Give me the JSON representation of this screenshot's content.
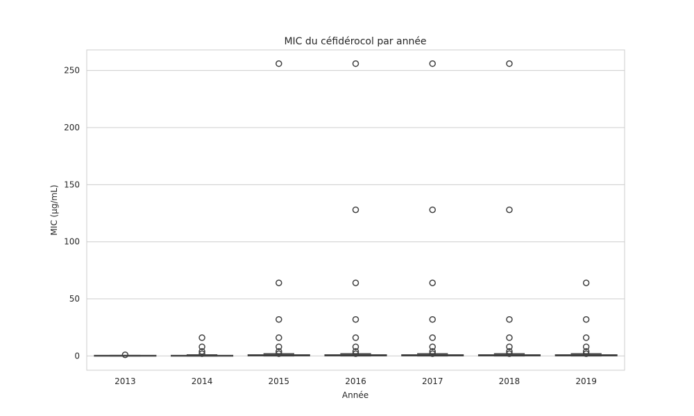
{
  "chart_data": {
    "type": "box",
    "title": "MIC du céfidérocol par année",
    "xlabel": "Année",
    "ylabel": "MIC (µg/mL)",
    "ylim": [
      -12.5,
      268
    ],
    "yticks": [
      0,
      50,
      100,
      150,
      200,
      250
    ],
    "ytick_labels": [
      "0",
      "50",
      "100",
      "150",
      "200",
      "250"
    ],
    "grid": true,
    "categories": [
      "2013",
      "2014",
      "2015",
      "2016",
      "2017",
      "2018",
      "2019"
    ],
    "boxes": [
      {
        "category": "2013",
        "q1": 0.25,
        "median": 0.25,
        "q3": 0.5,
        "whisker_low": 0.06,
        "whisker_high": 0.5,
        "outliers": [
          1
        ]
      },
      {
        "category": "2014",
        "q1": 0.12,
        "median": 0.25,
        "q3": 0.5,
        "whisker_low": 0.03,
        "whisker_high": 1,
        "outliers": [
          2,
          4,
          8,
          16
        ]
      },
      {
        "category": "2015",
        "q1": 0.12,
        "median": 0.25,
        "q3": 1,
        "whisker_low": 0.03,
        "whisker_high": 2,
        "outliers": [
          2,
          4,
          8,
          16,
          32,
          64,
          256
        ]
      },
      {
        "category": "2016",
        "q1": 0.12,
        "median": 0.25,
        "q3": 1,
        "whisker_low": 0.03,
        "whisker_high": 2,
        "outliers": [
          2,
          4,
          8,
          16,
          32,
          64,
          128,
          256
        ]
      },
      {
        "category": "2017",
        "q1": 0.12,
        "median": 0.25,
        "q3": 1,
        "whisker_low": 0.03,
        "whisker_high": 2,
        "outliers": [
          2,
          4,
          8,
          16,
          32,
          64,
          128,
          256
        ]
      },
      {
        "category": "2018",
        "q1": 0.12,
        "median": 0.25,
        "q3": 1,
        "whisker_low": 0.03,
        "whisker_high": 2,
        "outliers": [
          2,
          4,
          8,
          16,
          32,
          128,
          256
        ]
      },
      {
        "category": "2019",
        "q1": 0.12,
        "median": 0.25,
        "q3": 1,
        "whisker_low": 0.03,
        "whisker_high": 2,
        "outliers": [
          2,
          4,
          8,
          16,
          32,
          64
        ]
      }
    ],
    "colors": {
      "box_fill": "#3b76af",
      "box_edge": "#3f3f3f",
      "grid": "#cccccc",
      "text": "#262626"
    }
  }
}
